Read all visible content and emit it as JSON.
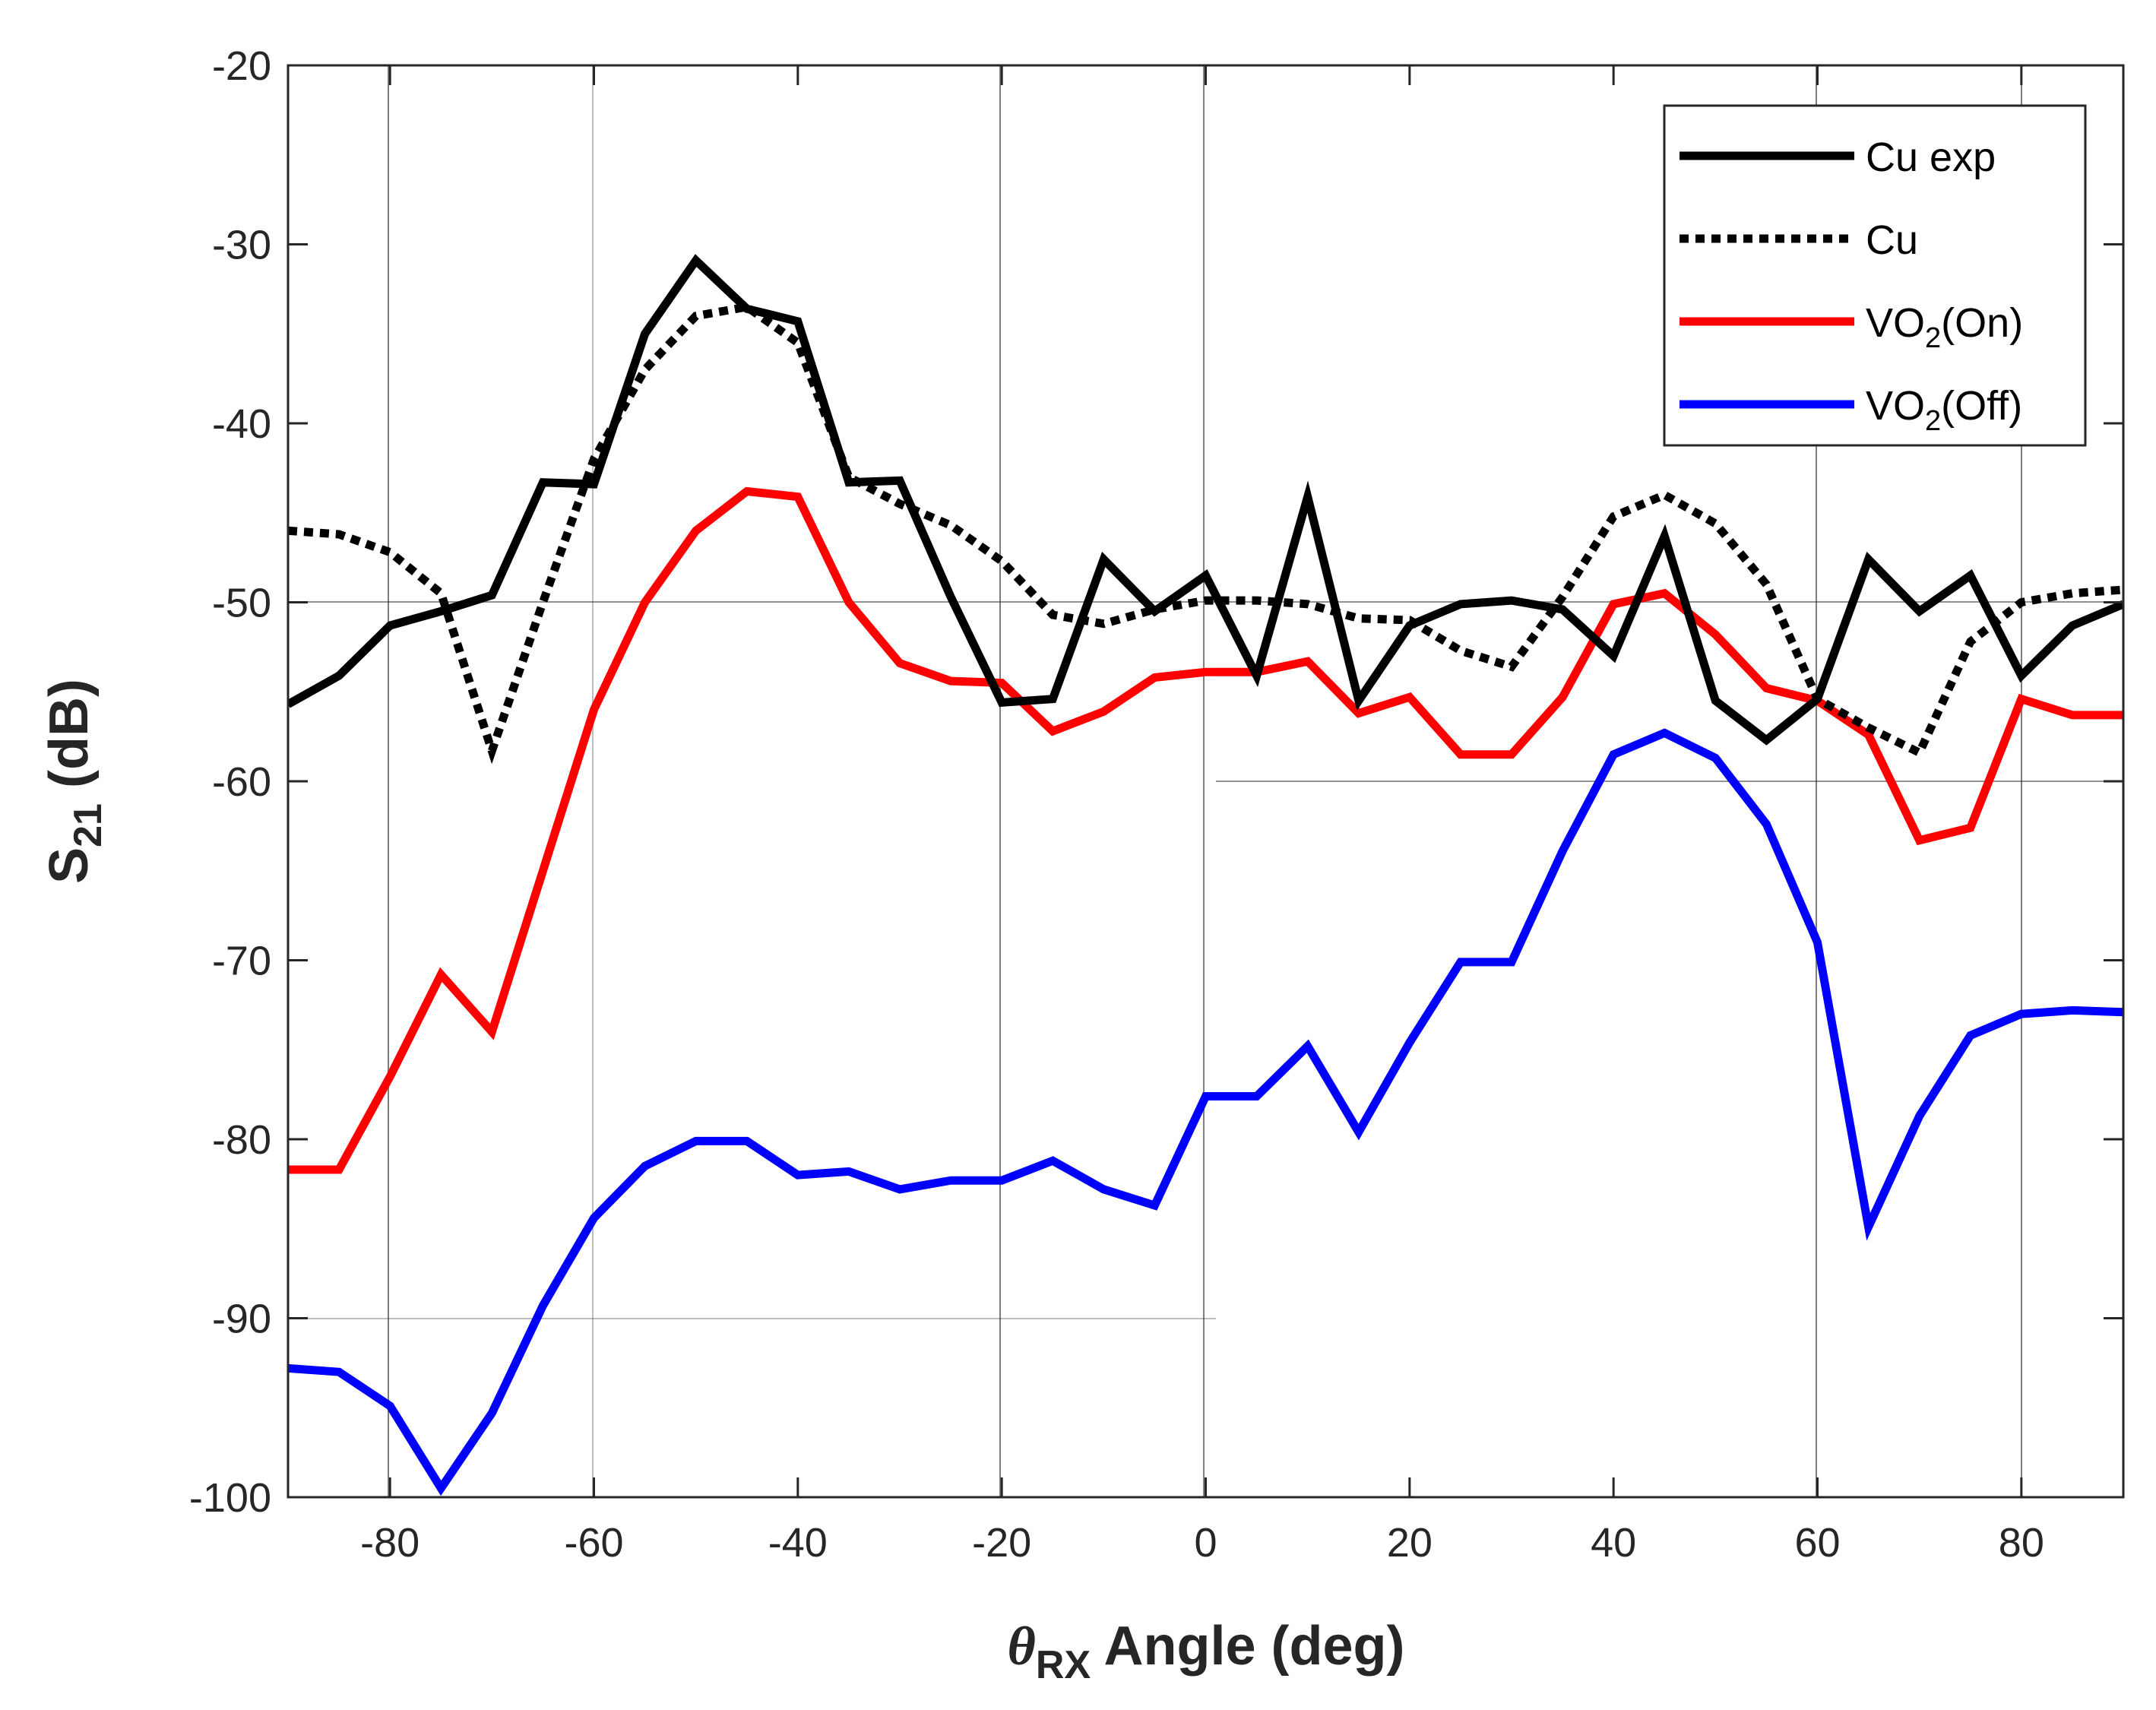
{
  "chart_data": {
    "type": "line",
    "title": "",
    "xlabel": "θRX Angle (deg)",
    "xlabel_parts": {
      "symbol": "θ",
      "subscript": "RX",
      "rest": "Angle (deg)"
    },
    "ylabel": "S21 (dB)",
    "ylabel_parts": {
      "main": "S",
      "subscript": "21",
      "rest": "(dB)"
    },
    "xlim": [
      -90,
      90
    ],
    "ylim": [
      -100,
      -20
    ],
    "xticks": [
      -80,
      -60,
      -40,
      -20,
      0,
      20,
      40,
      60,
      80
    ],
    "yticks": [
      -100,
      -90,
      -80,
      -70,
      -60,
      -50,
      -40,
      -30,
      -20
    ],
    "legend_position": "top-right",
    "series": [
      {
        "name": "Cu exp",
        "legend": {
          "main": "Cu exp",
          "sub": "",
          "suffix": ""
        },
        "color": "#000000",
        "style": "solid",
        "x": [
          -90,
          -85,
          -80,
          -75,
          -70,
          -65,
          -60,
          -55,
          -50,
          -45,
          -40,
          -35,
          -30,
          -25,
          -20,
          -15,
          -10,
          -5,
          0,
          5,
          10,
          15,
          20,
          25,
          30,
          35,
          40,
          45,
          50,
          55,
          60,
          65,
          70,
          75,
          80,
          85,
          90
        ],
        "values": [
          -55.7,
          -54.1,
          -51.3,
          -50.5,
          -49.6,
          -43.3,
          -43.4,
          -35,
          -30.9,
          -33.6,
          -34.3,
          -43.3,
          -43.2,
          -49.7,
          -55.6,
          -55.4,
          -47.6,
          -50.5,
          -48.5,
          -54.1,
          -44.1,
          -55.5,
          -51.3,
          -50.1,
          -49.9,
          -50.4,
          -53,
          -46.3,
          -55.5,
          -57.7,
          -55.4,
          -47.6,
          -50.5,
          -48.5,
          -54.1,
          -51.3,
          -50.1
        ]
      },
      {
        "name": "Cu",
        "legend": {
          "main": "Cu",
          "sub": "",
          "suffix": ""
        },
        "color": "#000000",
        "style": "dotted",
        "x": [
          -90,
          -85,
          -80,
          -75,
          -70,
          -65,
          -60,
          -55,
          -50,
          -45,
          -40,
          -35,
          -30,
          -25,
          -20,
          -15,
          -10,
          -5,
          0,
          5,
          10,
          15,
          20,
          25,
          30,
          35,
          40,
          45,
          50,
          55,
          60,
          65,
          70,
          75,
          80,
          85,
          90
        ],
        "values": [
          -46,
          -46.2,
          -47.2,
          -49.5,
          -58.3,
          -50,
          -42,
          -37,
          -34,
          -33.5,
          -35.5,
          -43,
          -44.5,
          -45.7,
          -47.7,
          -50.7,
          -51.2,
          -50.4,
          -49.9,
          -49.9,
          -50.1,
          -50.9,
          -51,
          -52.7,
          -53.6,
          -49.7,
          -45.2,
          -44,
          -45.6,
          -49,
          -55.4,
          -57,
          -58.4,
          -52.2,
          -50,
          -49.5,
          -49.3
        ]
      },
      {
        "name": "VO2(On)",
        "legend": {
          "main": "VO",
          "sub": "2",
          "suffix": "(On)"
        },
        "color": "#ff0000",
        "style": "solid",
        "x": [
          -90,
          -85,
          -80,
          -75,
          -70,
          -65,
          -60,
          -55,
          -50,
          -45,
          -40,
          -35,
          -30,
          -25,
          -20,
          -15,
          -10,
          -5,
          0,
          5,
          10,
          15,
          20,
          25,
          30,
          35,
          40,
          45,
          50,
          55,
          60,
          65,
          70,
          75,
          80,
          85,
          90
        ],
        "values": [
          -81.7,
          -81.7,
          -76.5,
          -70.8,
          -74,
          -65,
          -56,
          -50,
          -46,
          -43.8,
          -44.1,
          -50,
          -53.4,
          -54.4,
          -54.5,
          -57.2,
          -56.1,
          -54.2,
          -53.9,
          -53.9,
          -53.3,
          -56.2,
          -55.3,
          -58.5,
          -58.5,
          -55.3,
          -50.1,
          -49.5,
          -51.8,
          -54.8,
          -55.5,
          -57.4,
          -63.3,
          -62.6,
          -55.4,
          -56.3,
          -56.3
        ]
      },
      {
        "name": "VO2(Off)",
        "legend": {
          "main": "VO",
          "sub": "2",
          "suffix": "(Off)"
        },
        "color": "#0000ff",
        "style": "solid",
        "x": [
          -90,
          -85,
          -80,
          -75,
          -70,
          -65,
          -60,
          -55,
          -50,
          -45,
          -40,
          -35,
          -30,
          -25,
          -20,
          -15,
          -10,
          -5,
          0,
          5,
          10,
          15,
          20,
          25,
          30,
          35,
          40,
          45,
          50,
          55,
          60,
          65,
          70,
          75,
          80,
          85,
          90
        ],
        "values": [
          -92.8,
          -93,
          -94.9,
          -99.5,
          -95.3,
          -89.3,
          -84.4,
          -81.5,
          -80.1,
          -80.1,
          -82,
          -81.8,
          -82.8,
          -82.3,
          -82.3,
          -81.2,
          -82.8,
          -83.7,
          -77.6,
          -77.6,
          -74.8,
          -79.6,
          -74.6,
          -70.1,
          -70.1,
          -63.9,
          -58.5,
          -57.3,
          -58.7,
          -62.4,
          -69,
          -84.9,
          -78.7,
          -74.2,
          -73,
          -72.8,
          -72.9
        ]
      }
    ]
  }
}
